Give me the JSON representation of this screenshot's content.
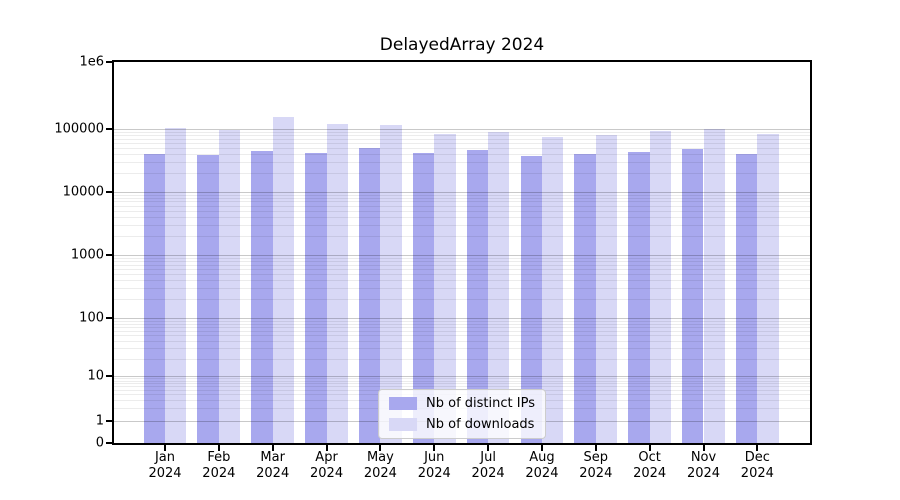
{
  "chart_data": {
    "type": "bar",
    "title": "DelayedArray 2024",
    "yscale": "symlog",
    "ylim": [
      0,
      1000000
    ],
    "grid": "horizontal major and log-minor, drawn over bars",
    "legend_position": "lower center",
    "categories": [
      "Jan",
      "Feb",
      "Mar",
      "Apr",
      "May",
      "Jun",
      "Jul",
      "Aug",
      "Sep",
      "Oct",
      "Nov",
      "Dec"
    ],
    "x_tick_year_line": "2024",
    "ytick_labels": [
      "1e6",
      "100000",
      "10000",
      "1000",
      "100",
      "10",
      "1",
      "0"
    ],
    "ytick_values": [
      1000000,
      100000,
      10000,
      1000,
      100,
      10,
      1,
      0
    ],
    "series": [
      {
        "name": "Nb of distinct IPs",
        "color": "#a8a8ee",
        "values": [
          40000,
          38500,
          45000,
          42000,
          50000,
          42000,
          46000,
          37500,
          40000,
          43000,
          48000,
          40000
        ]
      },
      {
        "name": "Nb of downloads",
        "color": "#d8d8f6",
        "values": [
          103000,
          97000,
          150000,
          117000,
          113000,
          82000,
          88000,
          73000,
          79000,
          91000,
          100000,
          83000
        ]
      }
    ]
  }
}
